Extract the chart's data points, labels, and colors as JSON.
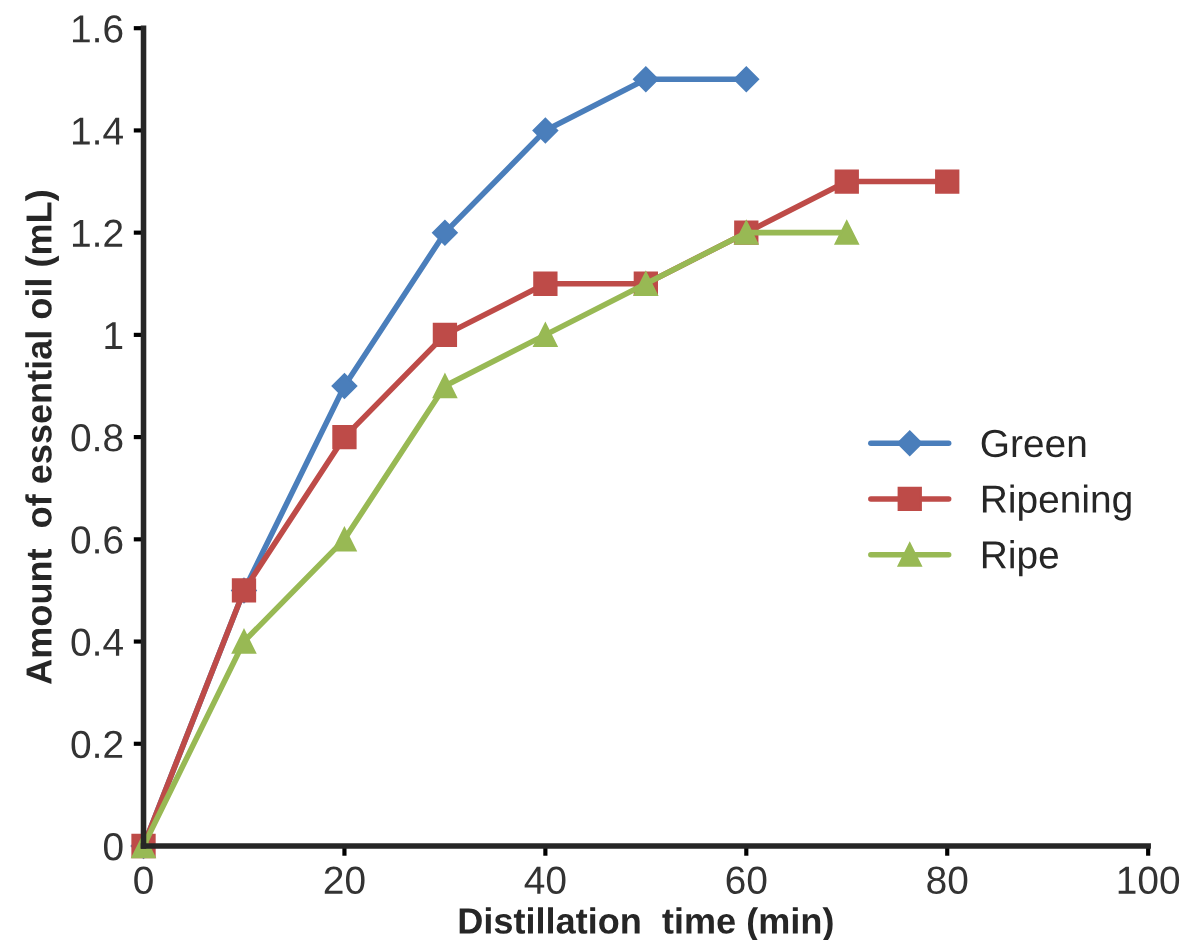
{
  "chart_data": {
    "type": "line",
    "xlabel": "Distillation  time (min)",
    "ylabel": "Amount  of essential oil (mL)",
    "xlim": [
      0,
      100
    ],
    "xticks": [
      0,
      20,
      40,
      60,
      80,
      100
    ],
    "ylim": [
      0,
      1.6
    ],
    "yticks": [
      0,
      0.2,
      0.4,
      0.6,
      0.8,
      1,
      1.2,
      1.4,
      1.6
    ],
    "grid": false,
    "legend": "right",
    "series": [
      {
        "name": "Green",
        "color": "#4a7ebb",
        "marker": "diamond",
        "x": [
          0,
          10,
          20,
          30,
          40,
          50,
          60
        ],
        "values": [
          0,
          0.5,
          0.9,
          1.2,
          1.4,
          1.5,
          1.5
        ]
      },
      {
        "name": "Ripening",
        "color": "#be4b48",
        "marker": "square",
        "x": [
          0,
          10,
          20,
          30,
          40,
          50,
          60,
          70,
          80
        ],
        "values": [
          0,
          0.5,
          0.8,
          1.0,
          1.1,
          1.1,
          1.2,
          1.3,
          1.3
        ]
      },
      {
        "name": "Ripe",
        "color": "#98b954",
        "marker": "triangle",
        "x": [
          0,
          10,
          20,
          30,
          40,
          50,
          60,
          70
        ],
        "values": [
          0,
          0.4,
          0.6,
          0.9,
          1.0,
          1.1,
          1.2,
          1.2
        ]
      }
    ]
  }
}
